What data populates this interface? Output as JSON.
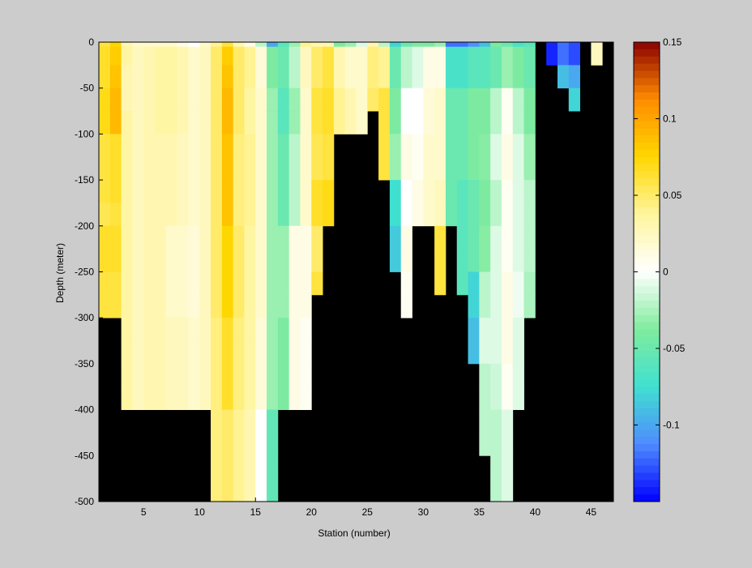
{
  "chart_data": {
    "type": "heatmap",
    "xlabel": "Station (number)",
    "ylabel": "Depth (meter)",
    "xlim": [
      1,
      47
    ],
    "ylim": [
      -500,
      0
    ],
    "xticks": [
      5,
      10,
      15,
      20,
      25,
      30,
      35,
      40,
      45
    ],
    "yticks": [
      0,
      -50,
      -100,
      -150,
      -200,
      -250,
      -300,
      -350,
      -400,
      -450,
      -500
    ],
    "clim": [
      -0.15,
      0.15
    ],
    "colorbar": {
      "ticks": [
        0.15,
        0.1,
        0.05,
        0,
        -0.05,
        -0.1
      ],
      "tick_labels": [
        "0.15",
        "0.1",
        "0.05",
        "0",
        "-0.05",
        "-0.1"
      ],
      "colors_low_to_high": [
        "#0000ff",
        "#4f8cff",
        "#40e0d0",
        "#80ec9e",
        "#ffffff",
        "#fff59e",
        "#ffd700",
        "#ff8c00",
        "#8b0000"
      ]
    },
    "missing_color": "#000000",
    "depth_levels": [
      0,
      -5,
      -25,
      -50,
      -75,
      -100,
      -125,
      -150,
      -175,
      -200,
      -225,
      -250,
      -275,
      -300,
      -325,
      -350,
      -375,
      -400,
      -425,
      -450,
      -475,
      -500
    ],
    "stations": [
      {
        "x": 2,
        "values": [
          0.06,
          0.065,
          0.065,
          0.07,
          0.07,
          0.06,
          0.06,
          0.06,
          0.055,
          0.065,
          0.065,
          0.06,
          0.06
        ]
      },
      {
        "x": 3,
        "values": [
          0.075,
          0.08,
          0.085,
          0.09,
          0.09,
          0.065,
          0.065,
          0.065,
          0.06,
          0.065,
          0.065,
          0.06,
          0.06
        ]
      },
      {
        "x": 4,
        "values": [
          0.03,
          0.035,
          0.03,
          0.03,
          0.035,
          0.035,
          0.035,
          0.035,
          0.035,
          0.035,
          0.035,
          0.035,
          0.035,
          0.035,
          0.035,
          0.035,
          0.035
        ]
      },
      {
        "x": 5,
        "values": [
          0.02,
          0.025,
          0.025,
          0.025,
          0.025,
          0.025,
          0.025,
          0.025,
          0.025,
          0.025,
          0.025,
          0.025,
          0.025,
          0.025,
          0.025,
          0.025,
          0.025
        ]
      },
      {
        "x": 6,
        "values": [
          0.02,
          0.03,
          0.03,
          0.03,
          0.03,
          0.03,
          0.03,
          0.03,
          0.03,
          0.03,
          0.03,
          0.03,
          0.03,
          0.03,
          0.03,
          0.03,
          0.03
        ]
      },
      {
        "x": 7,
        "values": [
          0.02,
          0.035,
          0.035,
          0.035,
          0.035,
          0.03,
          0.03,
          0.03,
          0.03,
          0.03,
          0.03,
          0.03,
          0.03,
          0.03,
          0.03,
          0.03,
          0.03
        ]
      },
      {
        "x": 8,
        "values": [
          0.02,
          0.035,
          0.035,
          0.035,
          0.035,
          0.03,
          0.03,
          0.03,
          0.03,
          0.02,
          0.02,
          0.02,
          0.02,
          0.025,
          0.025,
          0.025,
          0.025
        ]
      },
      {
        "x": 9,
        "values": [
          0.01,
          0.03,
          0.03,
          0.03,
          0.03,
          0.025,
          0.025,
          0.025,
          0.025,
          0.02,
          0.02,
          0.02,
          0.02,
          0.025,
          0.025,
          0.025,
          0.025
        ]
      },
      {
        "x": 10,
        "values": [
          0.0,
          0.02,
          0.02,
          0.02,
          0.02,
          0.02,
          0.02,
          0.02,
          0.02,
          0.015,
          0.015,
          0.015,
          0.015,
          0.02,
          0.02,
          0.02,
          0.02
        ]
      },
      {
        "x": 11,
        "values": [
          0.02,
          0.025,
          0.025,
          0.025,
          0.025,
          0.025,
          0.025,
          0.025,
          0.025,
          0.025,
          0.025,
          0.025,
          0.025,
          0.025,
          0.025,
          0.025,
          0.025
        ]
      },
      {
        "x": 12,
        "values": [
          0.04,
          0.05,
          0.05,
          0.05,
          0.05,
          0.05,
          0.05,
          0.05,
          0.05,
          0.05,
          0.05,
          0.05,
          0.05,
          0.045,
          0.045,
          0.045,
          0.045,
          0.045,
          0.045,
          0.045,
          0.045
        ]
      },
      {
        "x": 13,
        "values": [
          0.06,
          0.08,
          0.085,
          0.09,
          0.09,
          0.085,
          0.085,
          0.085,
          0.085,
          0.075,
          0.075,
          0.075,
          0.075,
          0.065,
          0.065,
          0.065,
          0.065,
          0.05,
          0.05,
          0.05,
          0.05
        ]
      },
      {
        "x": 14,
        "values": [
          0.03,
          0.05,
          0.05,
          0.05,
          0.05,
          0.045,
          0.045,
          0.045,
          0.045,
          0.05,
          0.05,
          0.05,
          0.05,
          0.045,
          0.045,
          0.045,
          0.045,
          0.04,
          0.04,
          0.04,
          0.04
        ]
      },
      {
        "x": 15,
        "values": [
          0.01,
          0.04,
          0.04,
          0.035,
          0.035,
          0.04,
          0.04,
          0.04,
          0.04,
          0.035,
          0.035,
          0.035,
          0.035,
          0.035,
          0.035,
          0.035,
          0.035,
          0.03,
          0.03,
          0.03,
          0.03
        ]
      },
      {
        "x": 16,
        "values": [
          -0.02,
          0.015,
          0.015,
          0.02,
          0.02,
          0.02,
          0.02,
          0.02,
          0.02,
          0.02,
          0.02,
          0.02,
          0.02,
          0.015,
          0.015,
          0.015,
          0.015,
          0.0,
          0.0,
          0.0,
          0.0
        ]
      },
      {
        "x": 17,
        "values": [
          -0.1,
          -0.04,
          -0.04,
          -0.03,
          -0.03,
          -0.03,
          -0.03,
          -0.03,
          -0.03,
          -0.03,
          -0.03,
          -0.03,
          -0.03,
          -0.03,
          -0.03,
          -0.03,
          -0.03,
          -0.055,
          -0.055,
          -0.055,
          -0.055
        ]
      },
      {
        "x": 18,
        "values": [
          -0.06,
          -0.05,
          -0.05,
          -0.06,
          -0.06,
          -0.05,
          -0.05,
          -0.05,
          -0.05,
          -0.03,
          -0.03,
          -0.03,
          -0.03,
          -0.04,
          -0.04,
          -0.04,
          -0.04
        ]
      },
      {
        "x": 19,
        "values": [
          -0.03,
          -0.02,
          -0.02,
          -0.03,
          -0.03,
          -0.02,
          -0.02,
          -0.02,
          -0.02,
          0.01,
          0.01,
          0.01,
          0.01,
          0.01,
          0.01,
          0.01,
          0.01
        ]
      },
      {
        "x": 20,
        "values": [
          0.04,
          0.025,
          0.025,
          0.02,
          0.02,
          0.02,
          0.02,
          0.02,
          0.02,
          0.01,
          0.01,
          0.01,
          0.01,
          0.005,
          0.005,
          0.005,
          0.005
        ]
      },
      {
        "x": 21,
        "values": [
          0.03,
          0.05,
          0.05,
          0.06,
          0.06,
          0.055,
          0.055,
          0.065,
          0.065,
          0.05,
          0.05,
          0.06
        ]
      },
      {
        "x": 22,
        "values": [
          0.03,
          0.06,
          0.06,
          0.065,
          0.065,
          0.06,
          0.06,
          0.07,
          0.07
        ]
      },
      {
        "x": 23,
        "values": [
          -0.04,
          0.03,
          0.03,
          0.04,
          0.04
        ]
      },
      {
        "x": 24,
        "values": [
          -0.03,
          0.02,
          0.02,
          0.03,
          0.03
        ]
      },
      {
        "x": 25,
        "values": [
          -0.01,
          0.02,
          0.02,
          0.02,
          0.02
        ]
      },
      {
        "x": 26,
        "values": [
          0.03,
          0.045,
          0.045,
          0.05
        ]
      },
      {
        "x": 27,
        "values": [
          -0.02,
          0.04,
          0.04,
          0.06,
          0.06,
          0.06,
          0.06
        ]
      },
      {
        "x": 28,
        "values": [
          -0.08,
          -0.05,
          -0.05,
          -0.04,
          -0.04,
          -0.03,
          -0.03,
          -0.075,
          -0.075,
          -0.085,
          -0.085
        ]
      },
      {
        "x": 29,
        "values": [
          -0.05,
          -0.02,
          -0.02,
          0.0,
          0.0,
          0.01,
          0.01,
          0.0,
          0.0,
          0.01,
          0.01,
          0.005,
          0.005
        ]
      },
      {
        "x": 30,
        "values": [
          -0.04,
          -0.01,
          -0.01,
          0.0,
          0.0,
          0.005,
          0.005,
          0.01,
          0.01
        ]
      },
      {
        "x": 31,
        "values": [
          -0.04,
          0.01,
          0.01,
          0.015,
          0.015,
          0.02,
          0.02,
          0.02,
          0.02
        ]
      },
      {
        "x": 32,
        "values": [
          -0.03,
          0.01,
          0.01,
          0.02,
          0.02,
          0.02,
          0.02,
          0.025,
          0.025,
          0.06,
          0.06,
          0.06
        ]
      },
      {
        "x": 33,
        "values": [
          -0.12,
          -0.07,
          -0.07,
          -0.05,
          -0.05,
          -0.05,
          -0.05,
          -0.05,
          -0.05
        ]
      },
      {
        "x": 34,
        "values": [
          -0.12,
          -0.07,
          -0.07,
          -0.05,
          -0.05,
          -0.05,
          -0.05,
          -0.06,
          -0.06,
          -0.06,
          -0.06,
          -0.06
        ]
      },
      {
        "x": 35,
        "values": [
          -0.11,
          -0.06,
          -0.06,
          -0.04,
          -0.04,
          -0.04,
          -0.04,
          -0.05,
          -0.05,
          -0.05,
          -0.05,
          -0.08,
          -0.08,
          -0.09,
          -0.09
        ]
      },
      {
        "x": 36,
        "values": [
          -0.09,
          -0.06,
          -0.06,
          -0.04,
          -0.04,
          -0.035,
          -0.035,
          -0.04,
          -0.04,
          -0.035,
          -0.035,
          -0.02,
          -0.02,
          -0.01,
          -0.01,
          -0.02,
          -0.02,
          -0.02,
          -0.02
        ]
      },
      {
        "x": 37,
        "values": [
          -0.04,
          -0.05,
          -0.05,
          -0.02,
          -0.02,
          -0.01,
          -0.01,
          -0.02,
          -0.02,
          -0.01,
          -0.01,
          -0.01,
          -0.01,
          -0.01,
          -0.01,
          -0.015,
          -0.015,
          -0.02,
          -0.02,
          -0.02,
          -0.02
        ]
      },
      {
        "x": 38,
        "values": [
          -0.05,
          -0.03,
          -0.03,
          0.005,
          0.005,
          0.01,
          0.01,
          0.005,
          0.005,
          0.005,
          0.005,
          0.01,
          0.01,
          0.01,
          0.01,
          0.005,
          0.005,
          -0.01,
          -0.01,
          -0.01,
          -0.01
        ]
      },
      {
        "x": 39,
        "values": [
          -0.07,
          -0.04,
          -0.04,
          -0.02,
          -0.02,
          -0.01,
          -0.01,
          -0.01,
          -0.01,
          -0.01,
          -0.01,
          -0.005,
          -0.005,
          -0.01,
          -0.01,
          -0.01,
          -0.01
        ]
      },
      {
        "x": 40,
        "values": [
          -0.06,
          -0.05,
          -0.05,
          -0.04,
          -0.04,
          -0.03,
          -0.03,
          -0.02,
          -0.02,
          -0.02,
          -0.02,
          -0.025,
          -0.025
        ]
      },
      {
        "x": 42,
        "values": [
          -0.14,
          -0.14
        ]
      },
      {
        "x": 43,
        "values": [
          -0.12,
          -0.12,
          -0.09
        ]
      },
      {
        "x": 44,
        "values": [
          -0.13,
          -0.13,
          -0.1,
          -0.08
        ]
      },
      {
        "x": 46,
        "values": [
          0.025,
          0.025
        ]
      }
    ]
  }
}
